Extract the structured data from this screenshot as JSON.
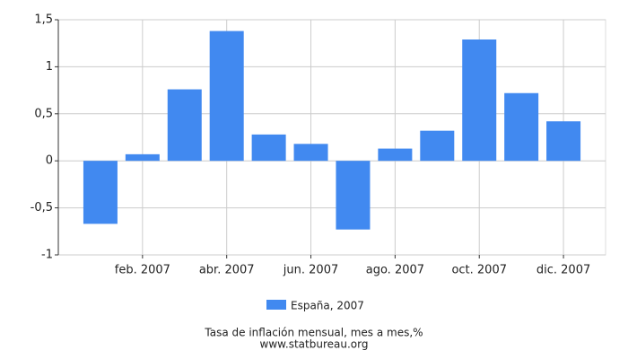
{
  "chart_data": {
    "type": "bar",
    "categories": [
      null,
      "feb. 2007",
      null,
      "abr. 2007",
      null,
      "jun. 2007",
      null,
      "ago. 2007",
      null,
      "oct. 2007",
      null,
      "dic. 2007"
    ],
    "series": [
      {
        "name": "España, 2007",
        "color": "#4189f0",
        "values": [
          -0.67,
          0.07,
          0.76,
          1.38,
          0.28,
          0.18,
          -0.73,
          0.13,
          0.32,
          1.29,
          0.72,
          0.42
        ]
      }
    ],
    "ylim": [
      -1,
      1.5
    ],
    "yticks": [
      -1,
      {
        "value": -0.5,
        "label": "-0,5"
      },
      0,
      {
        "value": 0.5,
        "label": "0,5"
      },
      1,
      {
        "value": 1.5,
        "label": "1,5"
      }
    ],
    "grid": true,
    "legend": "bottom",
    "title": "Tasa de inflación mensual, mes a mes,%",
    "source": "www.statbureau.org"
  }
}
